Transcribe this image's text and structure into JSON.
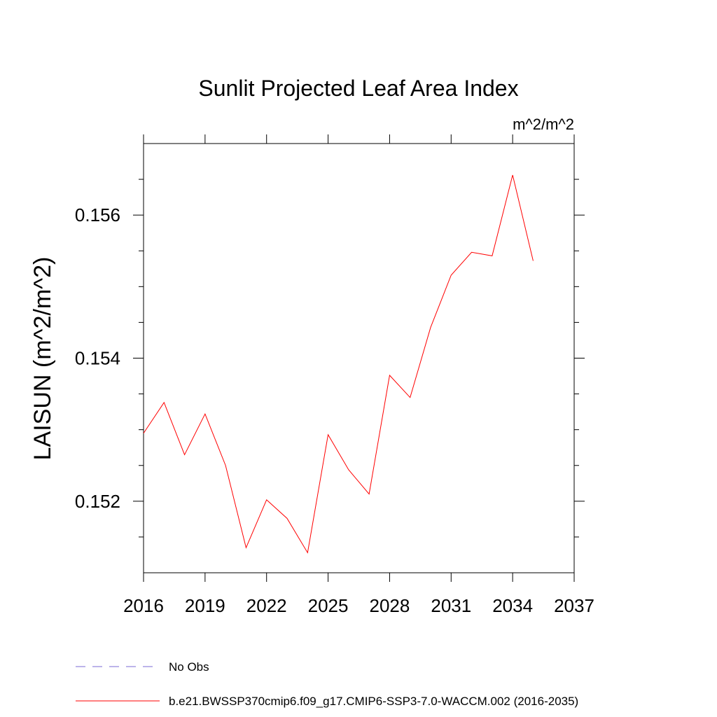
{
  "chart_data": {
    "type": "line",
    "title": "Sunlit Projected Leaf Area Index",
    "units": "m^2/m^2",
    "ylabel": "LAISUN  (m^2/m^2)",
    "xlabel": "",
    "xlim": [
      2016,
      2037
    ],
    "ylim": [
      0.151,
      0.157
    ],
    "x_ticks": [
      "2016",
      "2019",
      "2022",
      "2025",
      "2028",
      "2031",
      "2034",
      "2037"
    ],
    "y_ticks": [
      "0.152",
      "0.154",
      "0.156"
    ],
    "series": [
      {
        "name": "b.e21.BWSSP370cmip6.f09_g17.CMIP6-SSP3-7.0-WACCM.002 (2016-2035)",
        "color": "#ff0000",
        "x": [
          2016,
          2017,
          2018,
          2019,
          2020,
          2021,
          2022,
          2023,
          2024,
          2025,
          2026,
          2027,
          2028,
          2029,
          2030,
          2031,
          2032,
          2033,
          2034,
          2035
        ],
        "values": [
          0.15295,
          0.15338,
          0.15265,
          0.15322,
          0.1525,
          0.15135,
          0.15202,
          0.15176,
          0.15128,
          0.15293,
          0.15244,
          0.1521,
          0.15376,
          0.15345,
          0.15443,
          0.15516,
          0.15548,
          0.15543,
          0.15656,
          0.15536
        ]
      }
    ],
    "legend": [
      {
        "label": "No Obs",
        "color": "#7b68d6",
        "style": "dashed"
      },
      {
        "label": "b.e21.BWSSP370cmip6.f09_g17.CMIP6-SSP3-7.0-WACCM.002 (2016-2035)",
        "color": "#ff0000",
        "style": "solid"
      }
    ],
    "legend_position": "bottom-left",
    "grid": false
  }
}
